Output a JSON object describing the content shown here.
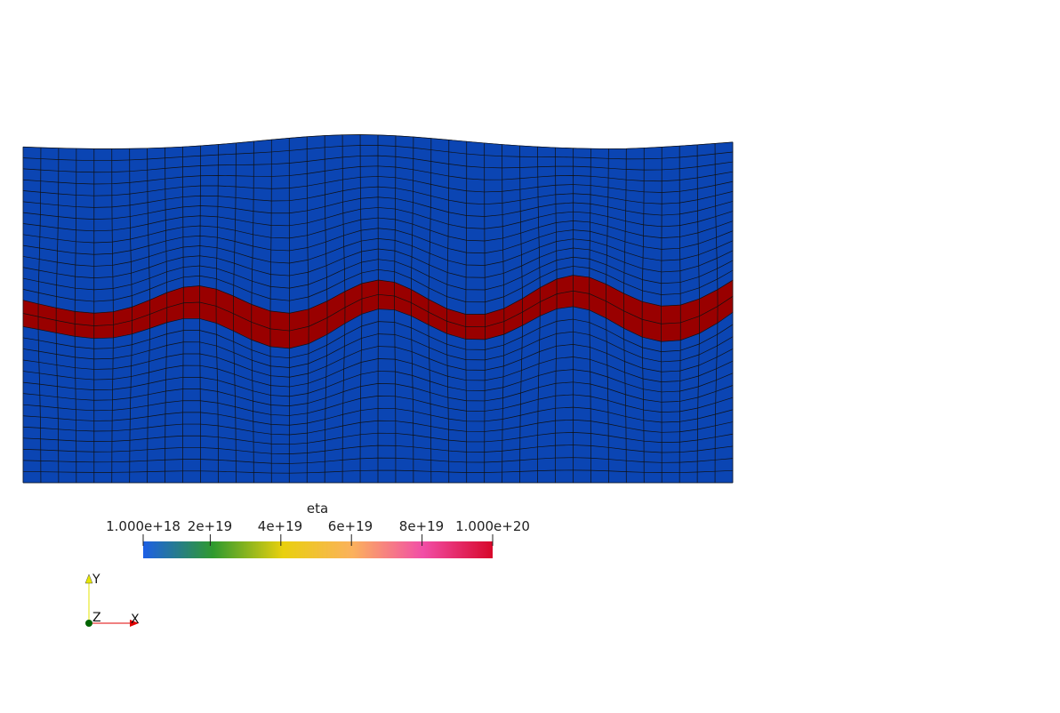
{
  "scalar_bar": {
    "title": "eta",
    "ticks": [
      {
        "label": "1.000e+18",
        "value": 1e+18
      },
      {
        "label": "2e+19",
        "value": 2e+19
      },
      {
        "label": "4e+19",
        "value": 4e+19
      },
      {
        "label": "6e+19",
        "value": 6e+19
      },
      {
        "label": "8e+19",
        "value": 8e+19
      },
      {
        "label": "1.000e+20",
        "value": 1e+20
      }
    ],
    "range": [
      1e+18,
      1e+20
    ],
    "colormap": [
      "#1d5fe6",
      "#2f9a2e",
      "#e9d00e",
      "#fbb15d",
      "#f24ea7",
      "#d7072a"
    ]
  },
  "mesh": {
    "matrix_color": "#0b45b3",
    "layer_color": "#990000",
    "edge_color": "#111111"
  },
  "axes_triad": {
    "y_label": "Y",
    "z_label": "Z",
    "x_label": "X",
    "x_color": "#e00000",
    "y_color": "#e6e600",
    "z_color": "#006400"
  }
}
